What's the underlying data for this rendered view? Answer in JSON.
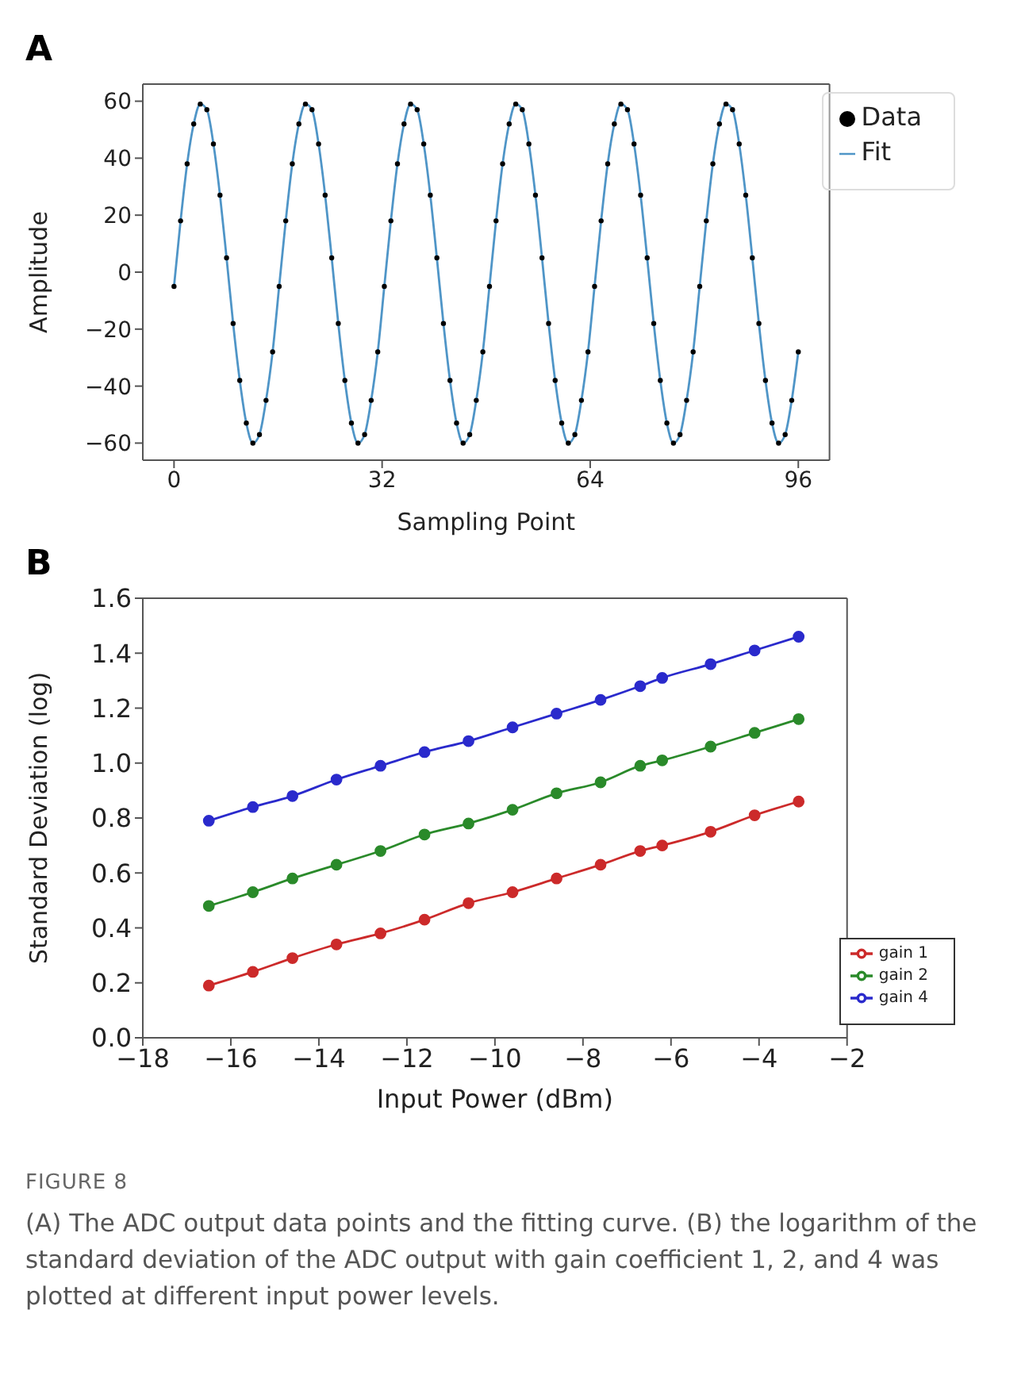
{
  "chart_data": [
    {
      "type": "line",
      "title": "A",
      "xlabel": "Sampling Point",
      "ylabel": "Amplitude",
      "xlim": [
        -4.8,
        100.8
      ],
      "xticks": [
        0,
        32,
        64,
        96
      ],
      "ylim": [
        -66,
        66
      ],
      "yticks": [
        -60,
        -40,
        -20,
        0,
        20,
        40,
        60
      ],
      "legend": "top right",
      "x": [
        0,
        1.01,
        2.02,
        3.03,
        4.04,
        5.05,
        6.06,
        7.07,
        8.08,
        9.09,
        10.11,
        11.12,
        12.13,
        13.14,
        14.15,
        15.16,
        16.17,
        17.18,
        18.19,
        19.2,
        20.21,
        21.22,
        22.23,
        23.24,
        24.25,
        25.26,
        26.27,
        27.28,
        28.29,
        29.31,
        30.32,
        31.33,
        32.34,
        33.35,
        34.36,
        35.37,
        36.38,
        37.39,
        38.4,
        39.41,
        40.42,
        41.43,
        42.44,
        43.45,
        44.46,
        45.47,
        46.48,
        47.49,
        48.51,
        49.52,
        50.53,
        51.54,
        52.55,
        53.56,
        54.57,
        55.58,
        56.59,
        57.6,
        58.61,
        59.62,
        60.63,
        61.64,
        62.65,
        63.66,
        64.67,
        65.68,
        66.69,
        67.71,
        68.72,
        69.73,
        70.74,
        71.75,
        72.76,
        73.77,
        74.78,
        75.79,
        76.8,
        77.81,
        78.82,
        79.83,
        80.84,
        81.85,
        82.86,
        83.87,
        84.88,
        85.89,
        86.91,
        87.92,
        88.93,
        89.94,
        90.95,
        91.96,
        92.97,
        93.98,
        94.99,
        96
      ],
      "series": [
        {
          "name": "Data",
          "type": "scatter",
          "color": "#000000",
          "values": [
            -5,
            18,
            38,
            52,
            59,
            57,
            45,
            27,
            5,
            -18,
            -38,
            -53,
            -60,
            -57,
            -45,
            -28,
            -5,
            18,
            38,
            52,
            59,
            57,
            45,
            27,
            5,
            -18,
            -38,
            -53,
            -60,
            -57,
            -45,
            -28,
            -5,
            18,
            38,
            52,
            59,
            57,
            45,
            27,
            5,
            -18,
            -38,
            -53,
            -60,
            -57,
            -45,
            -28,
            -5,
            18,
            38,
            52,
            59,
            57,
            45,
            27,
            5,
            -18,
            -38,
            -53,
            -60,
            -57,
            -45,
            -28,
            -5,
            18,
            38,
            52,
            59,
            57,
            45,
            27,
            5,
            -18,
            -38,
            -53,
            -60,
            -57,
            -45,
            -28,
            -5,
            18,
            38,
            52,
            59,
            57,
            45,
            27,
            5,
            -18,
            -38,
            -53,
            -60,
            -57,
            -45,
            -28
          ]
        },
        {
          "name": "Fit",
          "type": "line",
          "color": "#4f95c7",
          "values": [
            -5,
            18,
            38,
            52,
            59,
            57,
            45,
            27,
            5,
            -18,
            -38,
            -53,
            -60,
            -57,
            -45,
            -28,
            -5,
            18,
            38,
            52,
            59,
            57,
            45,
            27,
            5,
            -18,
            -38,
            -53,
            -60,
            -57,
            -45,
            -28,
            -5,
            18,
            38,
            52,
            59,
            57,
            45,
            27,
            5,
            -18,
            -38,
            -53,
            -60,
            -57,
            -45,
            -28,
            -5,
            18,
            38,
            52,
            59,
            57,
            45,
            27,
            5,
            -18,
            -38,
            -53,
            -60,
            -57,
            -45,
            -28,
            -5,
            18,
            38,
            52,
            59,
            57,
            45,
            27,
            5,
            -18,
            -38,
            -53,
            -60,
            -57,
            -45,
            -28,
            -5,
            18,
            38,
            52,
            59,
            57,
            45,
            27,
            5,
            -18,
            -38,
            -53,
            -60,
            -57,
            -45,
            -28
          ]
        }
      ]
    },
    {
      "type": "line",
      "title": "B",
      "xlabel": "Input Power (dBm)",
      "ylabel": "Standard Deviation (log)",
      "xlim": [
        -18,
        -2
      ],
      "xticks": [
        -18,
        -16,
        -14,
        -12,
        -10,
        -8,
        -6,
        -4,
        -2
      ],
      "ylim": [
        0,
        1.6
      ],
      "yticks": [
        {
          "value": 0,
          "label": "0.0"
        },
        0.2,
        0.4,
        0.6,
        0.8,
        {
          "value": 1,
          "label": "1.0"
        },
        1.2,
        1.4,
        1.6
      ],
      "legend": "bottom right",
      "marker": "circle",
      "x": [
        -16.5,
        -15.5,
        -14.6,
        -13.6,
        -12.6,
        -11.6,
        -10.6,
        -9.6,
        -8.6,
        -7.6,
        -6.7,
        -6.2,
        -5.1,
        -4.1,
        -3.1
      ],
      "series": [
        {
          "name": "gain 1",
          "color": "#cc2a2a",
          "values": [
            0.19,
            0.24,
            0.29,
            0.34,
            0.38,
            0.43,
            0.49,
            0.53,
            0.58,
            0.63,
            0.68,
            0.7,
            0.75,
            0.81,
            0.86
          ]
        },
        {
          "name": "gain 2",
          "color": "#2a8a2a",
          "values": [
            0.48,
            0.53,
            0.58,
            0.63,
            0.68,
            0.74,
            0.78,
            0.83,
            0.89,
            0.93,
            0.99,
            1.01,
            1.06,
            1.11,
            1.16
          ]
        },
        {
          "name": "gain 4",
          "color": "#2a2acc",
          "values": [
            0.79,
            0.84,
            0.88,
            0.94,
            0.99,
            1.04,
            1.08,
            1.13,
            1.18,
            1.23,
            1.28,
            1.31,
            1.36,
            1.41,
            1.46
          ]
        }
      ],
      "annotations": [
        "FIGURE 8",
        "(A) The ADC output data points and the fitting curve. (B) the logarithm of the standard deviation of the ADC output with gain coefficient 1, 2, and 4 was plotted at different input power levels."
      ]
    }
  ]
}
